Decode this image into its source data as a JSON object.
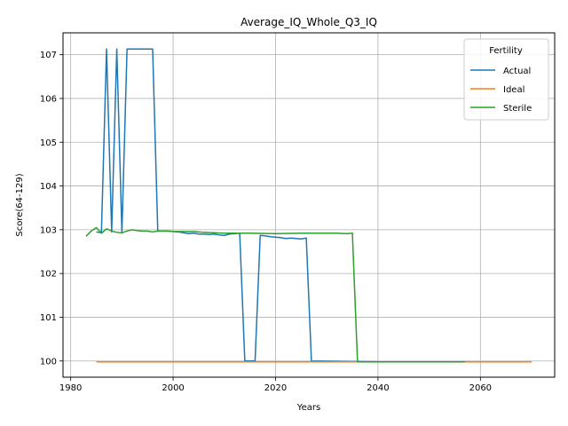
{
  "chart_data": {
    "type": "line",
    "title": "Average_IQ_Whole_Q3_IQ",
    "xlabel": "Years",
    "ylabel": "Score(64-129)",
    "xlim": [
      1978.5,
      2074.5
    ],
    "ylim": [
      99.63,
      107.5
    ],
    "xticks": [
      1980,
      2000,
      2020,
      2040,
      2060
    ],
    "yticks": [
      100,
      101,
      102,
      103,
      104,
      105,
      106,
      107
    ],
    "grid": true,
    "legend": {
      "title": "Fertility",
      "position": "top-right"
    },
    "series": [
      {
        "name": "Actual",
        "color": "#1f77b4",
        "points": [
          [
            1985,
            102.95
          ],
          [
            1986,
            102.93
          ],
          [
            1987,
            107.13
          ],
          [
            1988,
            102.95
          ],
          [
            1989,
            107.13
          ],
          [
            1990,
            102.93
          ],
          [
            1991,
            107.13
          ],
          [
            1992,
            107.13
          ],
          [
            1993,
            107.13
          ],
          [
            1994,
            107.13
          ],
          [
            1995,
            107.13
          ],
          [
            1996,
            107.13
          ],
          [
            1997,
            102.97
          ],
          [
            1998,
            102.97
          ],
          [
            1999,
            102.97
          ],
          [
            2000,
            102.96
          ],
          [
            2001,
            102.95
          ],
          [
            2002,
            102.93
          ],
          [
            2003,
            102.91
          ],
          [
            2004,
            102.92
          ],
          [
            2005,
            102.9
          ],
          [
            2006,
            102.9
          ],
          [
            2007,
            102.89
          ],
          [
            2008,
            102.9
          ],
          [
            2009,
            102.88
          ],
          [
            2010,
            102.87
          ],
          [
            2011,
            102.9
          ],
          [
            2012,
            102.91
          ],
          [
            2013,
            102.92
          ],
          [
            2014,
            100.0
          ],
          [
            2015,
            100.0
          ],
          [
            2016,
            100.0
          ],
          [
            2017,
            102.87
          ],
          [
            2018,
            102.86
          ],
          [
            2019,
            102.84
          ],
          [
            2020,
            102.83
          ],
          [
            2021,
            102.82
          ],
          [
            2022,
            102.8
          ],
          [
            2023,
            102.81
          ],
          [
            2024,
            102.8
          ],
          [
            2025,
            102.79
          ],
          [
            2026,
            102.81
          ],
          [
            2027,
            100.0
          ],
          [
            2040,
            99.98
          ],
          [
            2056,
            99.98
          ]
        ]
      },
      {
        "name": "Ideal",
        "color": "#ff7f0e",
        "points": [
          [
            1985,
            99.98
          ],
          [
            2070,
            99.98
          ]
        ]
      },
      {
        "name": "Sterile",
        "color": "#2ca02c",
        "points": [
          [
            1983,
            102.85
          ],
          [
            1984,
            102.97
          ],
          [
            1985,
            103.05
          ],
          [
            1986,
            102.92
          ],
          [
            1987,
            103.02
          ],
          [
            1988,
            102.97
          ],
          [
            1989,
            102.94
          ],
          [
            1990,
            102.93
          ],
          [
            1991,
            102.97
          ],
          [
            1992,
            103.0
          ],
          [
            1993,
            102.98
          ],
          [
            1994,
            102.97
          ],
          [
            1995,
            102.97
          ],
          [
            1996,
            102.95
          ],
          [
            1997,
            102.97
          ],
          [
            1998,
            102.97
          ],
          [
            1999,
            102.97
          ],
          [
            2000,
            102.96
          ],
          [
            2002,
            102.96
          ],
          [
            2004,
            102.96
          ],
          [
            2006,
            102.94
          ],
          [
            2008,
            102.93
          ],
          [
            2010,
            102.92
          ],
          [
            2012,
            102.92
          ],
          [
            2015,
            102.92
          ],
          [
            2020,
            102.91
          ],
          [
            2025,
            102.92
          ],
          [
            2030,
            102.92
          ],
          [
            2032,
            102.92
          ],
          [
            2034,
            102.91
          ],
          [
            2035,
            102.92
          ],
          [
            2036,
            99.98
          ],
          [
            2040,
            99.98
          ],
          [
            2057,
            99.98
          ]
        ]
      }
    ]
  }
}
